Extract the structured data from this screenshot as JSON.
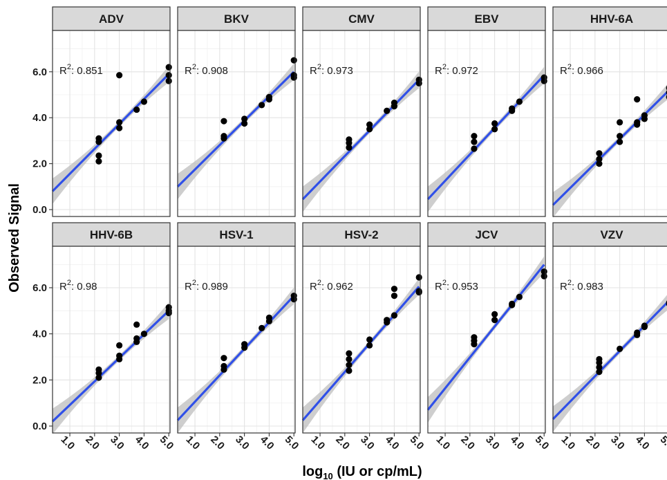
{
  "chart_data": {
    "type": "scatter",
    "layout": "faceted-grid",
    "xlabel_main": "log",
    "xlabel_sub": "10",
    "xlabel_rest": " (IU or cp/mL)",
    "ylabel": "Observed Signal",
    "xlim": [
      0.3,
      5.05
    ],
    "ylim": [
      -0.3,
      7.8
    ],
    "x_ticks": [
      1.0,
      2.0,
      3.0,
      4.0,
      5.0
    ],
    "x_tick_labels": [
      "1.0",
      "2.0",
      "3.0",
      "4.0",
      "5.0"
    ],
    "y_ticks": [
      0.0,
      2.0,
      4.0,
      6.0
    ],
    "y_tick_labels": [
      "0.0",
      "2.0",
      "4.0",
      "6.0"
    ],
    "r2_prefix": "R",
    "r2_superscript": "2",
    "grid": true,
    "colors": {
      "fit_line": "#3050e8",
      "confidence_band": "#bdbdbd",
      "points": "#000000",
      "strip": "#d9d9d9"
    },
    "panels": [
      {
        "name": "ADV",
        "r2": "0.851",
        "fit": {
          "x0": 0.3,
          "y0": 0.8,
          "x1": 5.0,
          "y1": 5.9
        },
        "points": [
          [
            2.17,
            3.1
          ],
          [
            2.17,
            2.95
          ],
          [
            2.17,
            2.35
          ],
          [
            2.17,
            2.1
          ],
          [
            3.0,
            5.85
          ],
          [
            3.0,
            3.8
          ],
          [
            3.0,
            3.55
          ],
          [
            3.7,
            4.35
          ],
          [
            4.0,
            4.7
          ],
          [
            5.0,
            6.2
          ],
          [
            5.0,
            5.85
          ],
          [
            5.0,
            5.6
          ]
        ]
      },
      {
        "name": "BKV",
        "r2": "0.908",
        "fit": {
          "x0": 0.3,
          "y0": 1.0,
          "x1": 5.0,
          "y1": 6.0
        },
        "points": [
          [
            2.17,
            3.85
          ],
          [
            2.17,
            3.2
          ],
          [
            2.17,
            3.1
          ],
          [
            3.0,
            3.95
          ],
          [
            3.0,
            3.75
          ],
          [
            3.7,
            4.55
          ],
          [
            4.0,
            4.9
          ],
          [
            4.0,
            4.8
          ],
          [
            5.0,
            6.5
          ],
          [
            5.0,
            5.85
          ],
          [
            5.0,
            5.75
          ]
        ]
      },
      {
        "name": "CMV",
        "r2": "0.973",
        "fit": {
          "x0": 0.3,
          "y0": 0.45,
          "x1": 5.0,
          "y1": 5.65
        },
        "points": [
          [
            2.17,
            3.05
          ],
          [
            2.17,
            2.9
          ],
          [
            2.17,
            2.7
          ],
          [
            3.0,
            3.7
          ],
          [
            3.0,
            3.5
          ],
          [
            3.7,
            4.3
          ],
          [
            4.0,
            4.65
          ],
          [
            4.0,
            4.5
          ],
          [
            5.0,
            5.65
          ],
          [
            5.0,
            5.5
          ]
        ]
      },
      {
        "name": "EBV",
        "r2": "0.972",
        "fit": {
          "x0": 0.3,
          "y0": 0.45,
          "x1": 5.0,
          "y1": 5.85
        },
        "points": [
          [
            2.17,
            3.2
          ],
          [
            2.17,
            2.95
          ],
          [
            2.17,
            2.65
          ],
          [
            3.0,
            3.75
          ],
          [
            3.0,
            3.5
          ],
          [
            3.7,
            4.4
          ],
          [
            3.7,
            4.3
          ],
          [
            4.0,
            4.7
          ],
          [
            5.0,
            5.75
          ],
          [
            5.0,
            5.6
          ]
        ]
      },
      {
        "name": "HHV-6A",
        "r2": "0.966",
        "fit": {
          "x0": 0.3,
          "y0": 0.2,
          "x1": 5.0,
          "y1": 5.2
        },
        "points": [
          [
            2.17,
            2.45
          ],
          [
            2.17,
            2.2
          ],
          [
            2.17,
            2.0
          ],
          [
            3.0,
            3.8
          ],
          [
            3.0,
            3.2
          ],
          [
            3.0,
            2.95
          ],
          [
            3.7,
            4.8
          ],
          [
            3.7,
            3.8
          ],
          [
            3.7,
            3.7
          ],
          [
            4.0,
            4.1
          ],
          [
            4.0,
            3.95
          ],
          [
            5.0,
            5.3
          ],
          [
            5.0,
            5.1
          ],
          [
            5.0,
            4.9
          ]
        ]
      },
      {
        "name": "HHV-6B",
        "r2": "0.98",
        "fit": {
          "x0": 0.3,
          "y0": 0.2,
          "x1": 5.0,
          "y1": 5.0
        },
        "points": [
          [
            2.17,
            2.45
          ],
          [
            2.17,
            2.3
          ],
          [
            2.17,
            2.1
          ],
          [
            3.0,
            3.5
          ],
          [
            3.0,
            3.05
          ],
          [
            3.0,
            2.9
          ],
          [
            3.7,
            4.4
          ],
          [
            3.7,
            3.8
          ],
          [
            3.7,
            3.65
          ],
          [
            4.0,
            4.0
          ],
          [
            5.0,
            5.15
          ],
          [
            5.0,
            5.0
          ],
          [
            5.0,
            4.9
          ]
        ]
      },
      {
        "name": "HSV-1",
        "r2": "0.989",
        "fit": {
          "x0": 0.3,
          "y0": 0.25,
          "x1": 5.0,
          "y1": 5.65
        },
        "points": [
          [
            2.17,
            2.95
          ],
          [
            2.17,
            2.6
          ],
          [
            2.17,
            2.45
          ],
          [
            3.0,
            3.55
          ],
          [
            3.0,
            3.4
          ],
          [
            3.7,
            4.25
          ],
          [
            4.0,
            4.7
          ],
          [
            4.0,
            4.55
          ],
          [
            5.0,
            5.65
          ],
          [
            5.0,
            5.5
          ]
        ]
      },
      {
        "name": "HSV-2",
        "r2": "0.962",
        "fit": {
          "x0": 0.3,
          "y0": 0.25,
          "x1": 5.0,
          "y1": 6.05
        },
        "points": [
          [
            2.17,
            3.15
          ],
          [
            2.17,
            2.9
          ],
          [
            2.17,
            2.65
          ],
          [
            2.17,
            2.4
          ],
          [
            3.0,
            3.75
          ],
          [
            3.0,
            3.5
          ],
          [
            3.7,
            4.6
          ],
          [
            3.7,
            4.5
          ],
          [
            4.0,
            5.95
          ],
          [
            4.0,
            5.65
          ],
          [
            4.0,
            4.8
          ],
          [
            5.0,
            6.45
          ],
          [
            5.0,
            5.85
          ],
          [
            5.0,
            5.8
          ]
        ]
      },
      {
        "name": "JCV",
        "r2": "0.953",
        "fit": {
          "x0": 0.3,
          "y0": 0.7,
          "x1": 5.0,
          "y1": 7.0
        },
        "points": [
          [
            2.17,
            3.85
          ],
          [
            2.17,
            3.7
          ],
          [
            2.17,
            3.55
          ],
          [
            3.0,
            4.85
          ],
          [
            3.0,
            4.6
          ],
          [
            3.7,
            5.3
          ],
          [
            3.7,
            5.25
          ],
          [
            4.0,
            5.6
          ],
          [
            5.0,
            6.7
          ],
          [
            5.0,
            6.5
          ]
        ]
      },
      {
        "name": "VZV",
        "r2": "0.983",
        "fit": {
          "x0": 0.3,
          "y0": 0.3,
          "x1": 5.05,
          "y1": 5.5
        },
        "points": [
          [
            2.17,
            2.9
          ],
          [
            2.17,
            2.75
          ],
          [
            2.17,
            2.55
          ],
          [
            2.17,
            2.35
          ],
          [
            3.0,
            3.35
          ],
          [
            3.7,
            4.05
          ],
          [
            3.7,
            3.95
          ],
          [
            4.0,
            4.35
          ],
          [
            4.0,
            4.3
          ],
          [
            5.0,
            5.35
          ],
          [
            5.0,
            5.3
          ]
        ]
      }
    ]
  }
}
